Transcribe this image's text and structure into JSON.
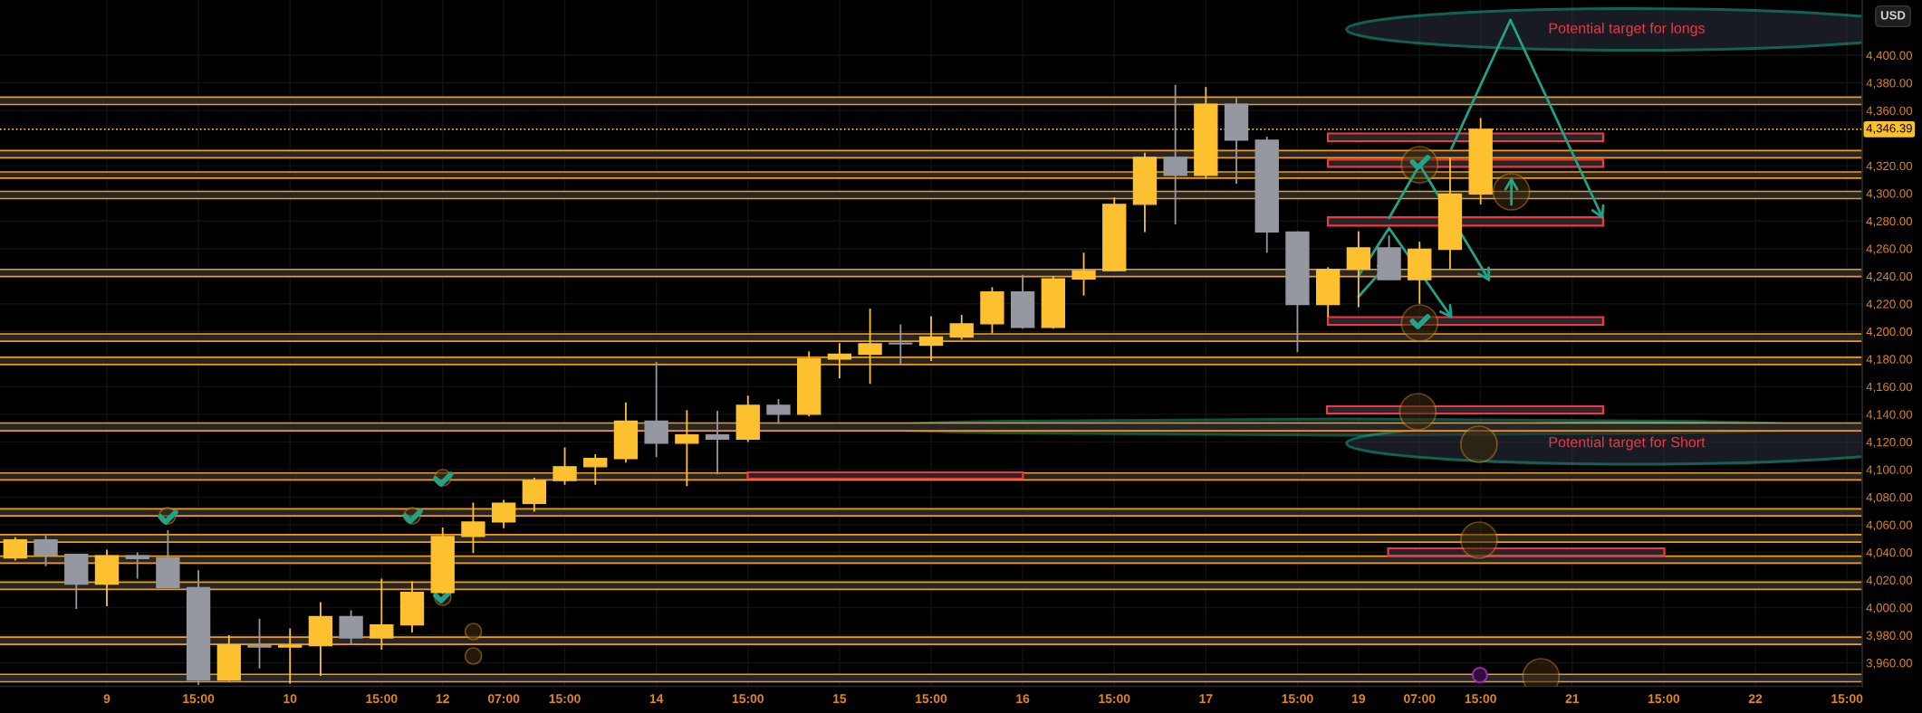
{
  "chart_data": {
    "type": "candlestick",
    "categories": [
      null,
      null,
      null,
      "9",
      null,
      null,
      "15:00",
      null,
      null,
      "10",
      null,
      null,
      "15:00",
      null,
      "12",
      null,
      "07:00",
      null,
      "15:00",
      null,
      null,
      "14",
      null,
      null,
      "15:00",
      null,
      null,
      "15",
      null,
      null,
      "15:00",
      null,
      null,
      "16",
      null,
      null,
      "15:00",
      null,
      null,
      "17",
      null,
      null,
      "15:00",
      null,
      "19",
      null,
      "07:00",
      null,
      "15:00",
      null,
      null,
      "21",
      null,
      null,
      "15:00",
      null,
      null,
      "22",
      null,
      null,
      "15:00"
    ],
    "ohlc": [
      [
        4036,
        4051,
        4034,
        4049
      ],
      [
        4049,
        4053,
        4030,
        4038
      ],
      [
        4038.5,
        4039,
        3999,
        4017
      ],
      [
        4017,
        4042,
        4001,
        4037.5
      ],
      [
        4037.5,
        4040,
        4021,
        4035.5
      ],
      [
        4036,
        4056,
        4014,
        4014.5
      ],
      [
        4014.5,
        4027,
        3944,
        3947.5
      ],
      [
        3947.5,
        3980,
        3947,
        3973
      ],
      [
        3972.5,
        3992,
        3956,
        3971.5
      ],
      [
        3971.5,
        3985,
        3945,
        3972.5
      ],
      [
        3972.5,
        4004,
        3950.5,
        3993.5
      ],
      [
        3993.5,
        3998,
        3973,
        3978
      ],
      [
        3978,
        4021,
        3969.5,
        3987.5
      ],
      [
        3987.5,
        4019,
        3982,
        4011
      ],
      [
        4011,
        4058,
        4010,
        4051.5
      ],
      [
        4051.5,
        4076,
        4039.5,
        4062
      ],
      [
        4062,
        4078,
        4057.5,
        4075.5
      ],
      [
        4075.5,
        4094,
        4069.5,
        4092
      ],
      [
        4092,
        4116,
        4089,
        4102
      ],
      [
        4102,
        4111,
        4089,
        4108
      ],
      [
        4108,
        4148.5,
        4105,
        4135
      ],
      [
        4135,
        4178,
        4109,
        4119
      ],
      [
        4119,
        4143,
        4088,
        4125
      ],
      [
        4125,
        4142.5,
        4096.5,
        4122
      ],
      [
        4122,
        4153.5,
        4120,
        4146.5
      ],
      [
        4146.5,
        4151,
        4133,
        4140
      ],
      [
        4140,
        4185.5,
        4138.5,
        4180
      ],
      [
        4180,
        4191.5,
        4166,
        4183.5
      ],
      [
        4183.5,
        4216.5,
        4162,
        4191
      ],
      [
        4191.5,
        4205,
        4175.5,
        4191
      ],
      [
        4190,
        4211,
        4178.5,
        4196
      ],
      [
        4196,
        4212,
        4194,
        4205.5
      ],
      [
        4205.5,
        4232,
        4198.5,
        4228.5
      ],
      [
        4228.5,
        4241,
        4202,
        4203
      ],
      [
        4203,
        4240,
        4202,
        4238
      ],
      [
        4238,
        4257,
        4226,
        4244
      ],
      [
        4244,
        4297,
        4243.5,
        4292
      ],
      [
        4292,
        4329.5,
        4272,
        4326
      ],
      [
        4326,
        4378.5,
        4277.5,
        4313
      ],
      [
        4313,
        4377,
        4310.5,
        4364.5
      ],
      [
        4364.5,
        4369,
        4307,
        4338.5
      ],
      [
        4338.5,
        4341,
        4257,
        4272
      ],
      [
        4272,
        4272.5,
        4185,
        4219.5
      ],
      [
        4219.5,
        4246.5,
        4210.5,
        4245
      ],
      [
        4245,
        4272.5,
        4217.5,
        4260.5
      ],
      [
        4260.5,
        4269.5,
        4237.5,
        4237.5
      ],
      [
        4237.5,
        4265,
        4220,
        4259.5
      ],
      [
        4259.5,
        4326,
        4245,
        4299.5
      ],
      [
        4299.5,
        4354.5,
        4292,
        4346.39
      ],
      null,
      null,
      null,
      null,
      null,
      null,
      null,
      null,
      null,
      null,
      null,
      null
    ],
    "colors": [
      "#fdc02f",
      "#9598a1",
      "#9598a1",
      "#fdc02f",
      "#9598a1",
      "#9598a1",
      "#9598a1",
      "#fdc02f",
      "#9598a1",
      "#fdc02f",
      "#fdc02f",
      "#9598a1",
      "#fdc02f",
      "#fdc02f",
      "#fdc02f",
      "#fdc02f",
      "#fdc02f",
      "#fdc02f",
      "#fdc02f",
      "#fdc02f",
      "#fdc02f",
      "#9598a1",
      "#fdc02f",
      "#9598a1",
      "#fdc02f",
      "#9598a1",
      "#fdc02f",
      "#fdc02f",
      "#fdc02f",
      "#9598a1",
      "#fdc02f",
      "#fdc02f",
      "#fdc02f",
      "#9598a1",
      "#fdc02f",
      "#fdc02f",
      "#fdc02f",
      "#fdc02f",
      "#9598a1",
      "#fdc02f",
      "#9598a1",
      "#9598a1",
      "#9598a1",
      "#fdc02f",
      "#fdc02f",
      "#9598a1",
      "#fdc02f",
      "#fdc02f",
      "#fdc02f",
      null,
      null,
      null,
      null,
      null,
      null,
      null,
      null,
      null,
      null,
      null,
      null
    ],
    "ylim": [
      3943,
      4440
    ],
    "yticks": [
      {
        "value": 3960,
        "label": "3,960.00"
      },
      {
        "value": 3980,
        "label": "3,980.00"
      },
      {
        "value": 4000,
        "label": "4,000.00"
      },
      {
        "value": 4020,
        "label": "4,020.00"
      },
      {
        "value": 4040,
        "label": "4,040.00"
      },
      {
        "value": 4060,
        "label": "4,060.00"
      },
      {
        "value": 4080,
        "label": "4,080.00"
      },
      {
        "value": 4100,
        "label": "4,100.00"
      },
      {
        "value": 4120,
        "label": "4,120.00"
      },
      {
        "value": 4140,
        "label": "4,140.00"
      },
      {
        "value": 4160,
        "label": "4,160.00"
      },
      {
        "value": 4180,
        "label": "4,180.00"
      },
      {
        "value": 4200,
        "label": "4,200.00"
      },
      {
        "value": 4220,
        "label": "4,220.00"
      },
      {
        "value": 4240,
        "label": "4,240.00"
      },
      {
        "value": 4260,
        "label": "4,260.00"
      },
      {
        "value": 4280,
        "label": "4,280.00"
      },
      {
        "value": 4300,
        "label": "4,300.00"
      },
      {
        "value": 4320,
        "label": "4,320.00"
      },
      {
        "value": 4360,
        "label": "4,360.00"
      },
      {
        "value": 4380,
        "label": "4,380.00"
      },
      {
        "value": 4400,
        "label": "4,400.00"
      }
    ],
    "grid": true,
    "bands": [
      {
        "axis": "y",
        "from": 4364.3,
        "to": 4369.6,
        "color": "#262626"
      },
      {
        "axis": "y",
        "from": 4325.7,
        "to": 4331,
        "color": "#262626"
      },
      {
        "axis": "y",
        "from": 4311,
        "to": 4315.5,
        "color": "#262626"
      },
      {
        "axis": "y",
        "from": 4296.2,
        "to": 4301.4,
        "color": "#262626"
      },
      {
        "axis": "y",
        "from": 4239.7,
        "to": 4244.9,
        "color": "#262626"
      },
      {
        "axis": "y",
        "from": 4192.9,
        "to": 4198.2,
        "color": "#262626"
      },
      {
        "axis": "y",
        "from": 4176,
        "to": 4181.3,
        "color": "#262626"
      },
      {
        "axis": "y",
        "from": 4128,
        "to": 4133.7,
        "color": "#262626"
      },
      {
        "axis": "y",
        "from": 4092.5,
        "to": 4097.5,
        "color": "#262626"
      },
      {
        "axis": "y",
        "from": 4066.4,
        "to": 4071.5,
        "color": "#262626"
      },
      {
        "axis": "y",
        "from": 4047.4,
        "to": 4052.8,
        "color": "#262626"
      },
      {
        "axis": "y",
        "from": 4032.2,
        "to": 4037.3,
        "color": "#262626"
      },
      {
        "axis": "y",
        "from": 4013.2,
        "to": 4018.4,
        "color": "#262626"
      },
      {
        "axis": "y",
        "from": 3973.4,
        "to": 3978.6,
        "color": "#262626"
      },
      {
        "axis": "y",
        "from": 3946.3,
        "to": 3951.7,
        "color": "#262626"
      }
    ],
    "ref_lines": [
      {
        "axis": "y",
        "value": 4364.3,
        "color": "#f39c12"
      },
      {
        "axis": "y",
        "value": 4369.6,
        "color": "#f39c12"
      },
      {
        "axis": "y",
        "value": 4325.7,
        "color": "#f39c12"
      },
      {
        "axis": "y",
        "value": 4331,
        "color": "#f39c12"
      },
      {
        "axis": "y",
        "value": 4311,
        "color": "#f39c12"
      },
      {
        "axis": "y",
        "value": 4315.5,
        "color": "#f39c12"
      },
      {
        "axis": "y",
        "value": 4296.2,
        "color": "#f39c12"
      },
      {
        "axis": "y",
        "value": 4301.4,
        "color": "#f39c12"
      },
      {
        "axis": "y",
        "value": 4239.7,
        "color": "#f39c12"
      },
      {
        "axis": "y",
        "value": 4244.9,
        "color": "#f39c12"
      },
      {
        "axis": "y",
        "value": 4192.9,
        "color": "#f39c12"
      },
      {
        "axis": "y",
        "value": 4198.2,
        "color": "#f39c12"
      },
      {
        "axis": "y",
        "value": 4176,
        "color": "#f39c12"
      },
      {
        "axis": "y",
        "value": 4181.3,
        "color": "#f39c12"
      },
      {
        "axis": "y",
        "value": 4128,
        "color": "#f39c12"
      },
      {
        "axis": "y",
        "value": 4133.7,
        "color": "#f39c12"
      },
      {
        "axis": "y",
        "value": 4092.5,
        "color": "#f39c12"
      },
      {
        "axis": "y",
        "value": 4097.5,
        "color": "#f39c12"
      },
      {
        "axis": "y",
        "value": 4066.4,
        "color": "#f39c12"
      },
      {
        "axis": "y",
        "value": 4071.5,
        "color": "#f39c12"
      },
      {
        "axis": "y",
        "value": 4047.4,
        "color": "#f39c12"
      },
      {
        "axis": "y",
        "value": 4052.8,
        "color": "#f39c12"
      },
      {
        "axis": "y",
        "value": 4032.2,
        "color": "#f39c12"
      },
      {
        "axis": "y",
        "value": 4037.3,
        "color": "#f39c12"
      },
      {
        "axis": "y",
        "value": 4013.2,
        "color": "#f39c12"
      },
      {
        "axis": "y",
        "value": 4018.4,
        "color": "#f39c12"
      },
      {
        "axis": "y",
        "value": 3973.4,
        "color": "#f39c12"
      },
      {
        "axis": "y",
        "value": 3978.6,
        "color": "#f39c12"
      },
      {
        "axis": "y",
        "value": 3946.3,
        "color": "#f39c12"
      },
      {
        "axis": "y",
        "value": 3951.7,
        "color": "#f39c12"
      },
      {
        "axis": "y",
        "value": 4346.39,
        "label": "4,346.39",
        "color": "#fbc02d",
        "line_style": "dotted"
      }
    ],
    "annotations": [
      "Potential target for longs",
      "Potential target for Short",
      "USD"
    ]
  }
}
